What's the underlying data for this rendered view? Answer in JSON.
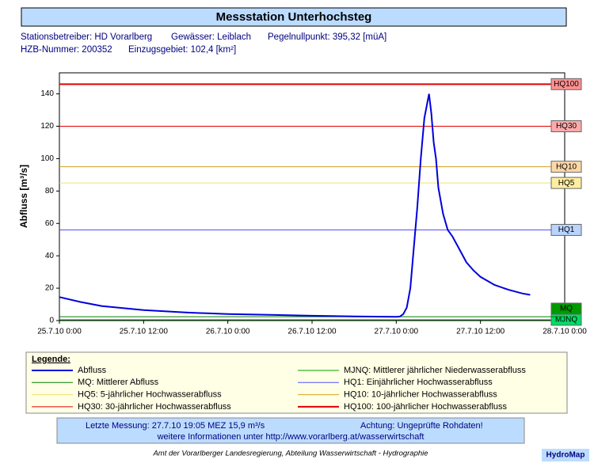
{
  "header": {
    "title": "Messstation Unterhochsteg",
    "info": [
      "Stationsbetreiber: HD Vorarlberg",
      "Gewässer: Leiblach",
      "Pegelnullpunkt: 395,32 [müA]",
      "HZB-Nummer: 200352",
      "Einzugsgebiet: 102,4 [km²]"
    ]
  },
  "chart_data": {
    "type": "line",
    "y_label": "Abfluss [m³/s]",
    "x": [
      "25.7.10 0:00",
      "25.7.10 3:00",
      "25.7.10 6:00",
      "25.7.10 12:00",
      "25.7.10 18:00",
      "26.7.10 0:00",
      "26.7.10 6:00",
      "26.7.10 12:00",
      "26.7.10 18:00",
      "27.7.10 0:00",
      "27.7.10 0:30",
      "27.7.10 1:00",
      "27.7.10 1:30",
      "27.7.10 2:00",
      "27.7.10 2:30",
      "27.7.10 3:00",
      "27.7.10 3:30",
      "27.7.10 4:00",
      "27.7.10 4:40",
      "27.7.10 5:00",
      "27.7.10 5:20",
      "27.7.10 5:40",
      "27.7.10 6:00",
      "27.7.10 6:40",
      "27.7.10 7:20",
      "27.7.10 8:00",
      "27.7.10 9:00",
      "27.7.10 10:00",
      "27.7.10 11:00",
      "27.7.10 12:00",
      "27.7.10 14:00",
      "27.7.10 16:00",
      "27.7.10 18:00",
      "27.7.10 19:05"
    ],
    "series": [
      {
        "name": "Abfluss",
        "color": "#0000dd",
        "values": [
          14.5,
          11.5,
          9,
          6.5,
          5,
          4,
          3.5,
          3,
          2.6,
          2.3,
          2.5,
          4,
          8,
          20,
          45,
          70,
          100,
          125,
          140,
          128,
          110,
          100,
          82,
          66,
          56,
          52,
          44,
          36,
          31,
          27,
          22,
          19,
          16.7,
          15.9
        ]
      }
    ],
    "reference_lines": [
      {
        "label": "MJNQ",
        "legend": "MJNQ: Mittlerer jährlicher Niederwasserabfluss",
        "value": 0.5,
        "color": "#00a000",
        "box_color": "#00dd66"
      },
      {
        "label": "MQ",
        "legend": "MQ: Mittlerer Abfluss",
        "value": 2.4,
        "color": "#008000",
        "box_color": "#009900"
      },
      {
        "label": "HQ1",
        "legend": "HQ1: Einjährlicher Hochwasserabfluss",
        "value": 56,
        "color": "#5050ff",
        "box_color": "#b8d4ff"
      },
      {
        "label": "HQ5",
        "legend": "HQ5: 5-jährlicher Hochwasserabfluss",
        "value": 85,
        "color": "#f0e070",
        "box_color": "#ffeea0"
      },
      {
        "label": "HQ10",
        "legend": "HQ10: 10-jährlicher Hochwasserabfluss",
        "value": 95,
        "color": "#d8a020",
        "box_color": "#ffd8a8"
      },
      {
        "label": "HQ30",
        "legend": "HQ30: 30-jährlicher Hochwasserabfluss",
        "value": 120,
        "color": "#e00000",
        "box_color": "#ffaaaa"
      },
      {
        "label": "HQ100",
        "legend": "HQ100: 100-jährlicher Hochwasserabfluss",
        "value": 146,
        "color": "#e00000",
        "box_color": "#ff9090"
      }
    ],
    "xlim": [
      "25.7.10 0:00",
      "28.7.10 0:00"
    ],
    "xticks": [
      "25.7.10 0:00",
      "25.7.10 12:00",
      "26.7.10 0:00",
      "26.7.10 12:00",
      "27.7.10 0:00",
      "27.7.10 12:00",
      "28.7.10 0:00"
    ],
    "ylim": [
      0,
      153
    ],
    "yticks": [
      0,
      20,
      40,
      60,
      80,
      100,
      120,
      140
    ],
    "legend_title": "Legende:"
  },
  "footer": {
    "last": "Letzte Messung:  27.7.10 19:05 MEZ    15,9 m³/s",
    "warning": "Achtung: Ungeprüfte Rohdaten!",
    "more": "weitere Informationen unter http://www.vorarlberg.at/wasserwirtschaft",
    "credit": "Amt der Vorarlberger Landesregierung, Abteilung Wasserwirtschaft - Hydrographie",
    "brand": "HydroMap"
  }
}
